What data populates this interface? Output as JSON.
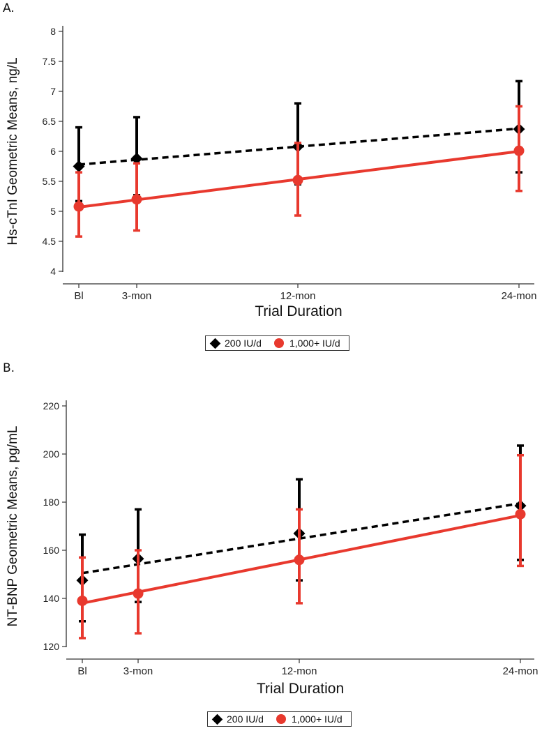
{
  "chart_data": [
    {
      "panel": "A.",
      "type": "line",
      "xlabel": "Trial Duration",
      "ylabel": "Hs-cTnI Geometric Means, ng/L",
      "categories": [
        "Bl",
        "3-mon",
        "12-mon",
        "24-mon"
      ],
      "x_months": [
        0,
        3,
        12,
        24
      ],
      "ylim": [
        4,
        8
      ],
      "yticks": [
        "4",
        "4.5",
        "5",
        "5.5",
        "6",
        "6.5",
        "7",
        "7.5",
        "8"
      ],
      "series": [
        {
          "name": "200 IU/d",
          "marker": "diamond",
          "line": "dashed",
          "values": [
            5.75,
            5.88,
            6.08,
            6.37
          ],
          "lower": [
            5.17,
            5.27,
            5.45,
            5.65
          ],
          "upper": [
            6.4,
            6.57,
            6.8,
            7.17
          ],
          "fit": [
            5.78,
            6.38
          ]
        },
        {
          "name": "1,000+ IU/d",
          "marker": "circle",
          "line": "solid",
          "values": [
            5.08,
            5.2,
            5.52,
            6.01
          ],
          "lower": [
            4.58,
            4.68,
            4.93,
            5.34
          ],
          "upper": [
            5.65,
            5.8,
            6.14,
            6.75
          ],
          "fit": [
            5.07,
            6.0
          ]
        }
      ]
    },
    {
      "panel": "B.",
      "type": "line",
      "xlabel": "Trial Duration",
      "ylabel": "NT-BNP Geometric Means, pg/mL",
      "categories": [
        "Bl",
        "3-mon",
        "12-mon",
        "24-mon"
      ],
      "x_months": [
        0,
        3,
        12,
        24
      ],
      "ylim": [
        120,
        220
      ],
      "yticks": [
        "120",
        "140",
        "160",
        "180",
        "200",
        "220"
      ],
      "series": [
        {
          "name": "200 IU/d",
          "marker": "diamond",
          "line": "dashed",
          "values": [
            147.5,
            156.5,
            167,
            178.5
          ],
          "lower": [
            130.5,
            138.5,
            147.5,
            156
          ],
          "upper": [
            166.5,
            177,
            189.5,
            203.5
          ],
          "fit": [
            150.5,
            179.5
          ]
        },
        {
          "name": "1,000+ IU/d",
          "marker": "circle",
          "line": "solid",
          "values": [
            139,
            142,
            156,
            175
          ],
          "lower": [
            123.5,
            125.5,
            138,
            153.5
          ],
          "upper": [
            157,
            160,
            177,
            199.5
          ],
          "fit": [
            138,
            174.5
          ]
        }
      ]
    }
  ],
  "legend": {
    "items": [
      {
        "label": "200 IU/d",
        "color": "#000000"
      },
      {
        "label": "1,000+ IU/d",
        "color": "#e8392e"
      }
    ]
  },
  "colors": {
    "series_black": "#000000",
    "series_red": "#e8392e",
    "axis": "#333333"
  }
}
